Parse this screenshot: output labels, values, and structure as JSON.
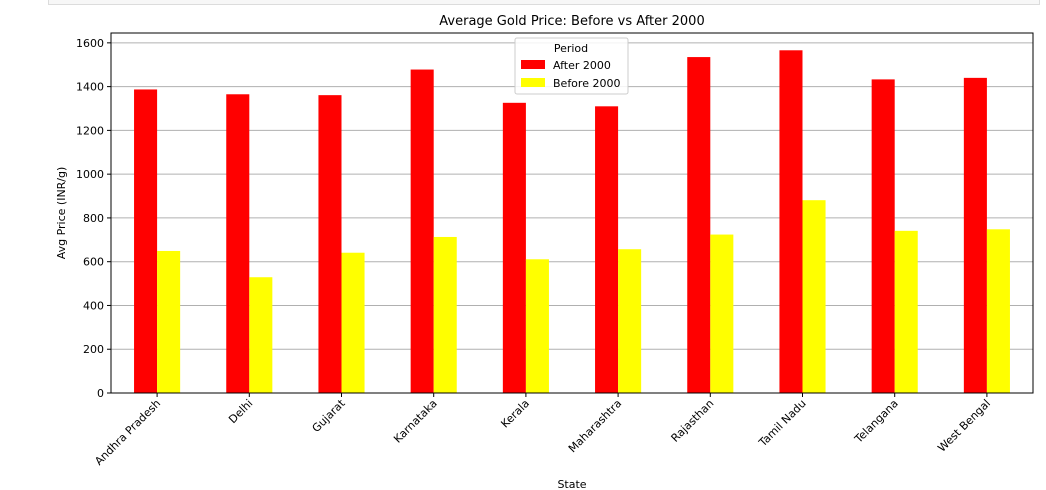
{
  "chart_data": {
    "type": "bar",
    "title": "Average Gold Price: Before vs After 2000",
    "xlabel": "State",
    "ylabel": "Avg Price (INR/g)",
    "categories": [
      "Andhra Pradesh",
      "Delhi",
      "Gujarat",
      "Karnataka",
      "Kerala",
      "Maharashtra",
      "Rajasthan",
      "Tamil Nadu",
      "Telangana",
      "West Bengal"
    ],
    "series": [
      {
        "name": "After 2000",
        "color": "#ff0000",
        "values": [
          1387,
          1365,
          1361,
          1478,
          1326,
          1310,
          1535,
          1566,
          1433,
          1440
        ]
      },
      {
        "name": "Before 2000",
        "color": "#ffff00",
        "values": [
          649,
          529,
          641,
          713,
          611,
          657,
          724,
          881,
          741,
          748
        ]
      }
    ],
    "ylim": [
      0,
      1645
    ],
    "yticks": [
      0,
      200,
      400,
      600,
      800,
      1000,
      1200,
      1400,
      1600
    ],
    "grid": "y",
    "legend": {
      "title": "Period",
      "placement": "top-center"
    }
  }
}
